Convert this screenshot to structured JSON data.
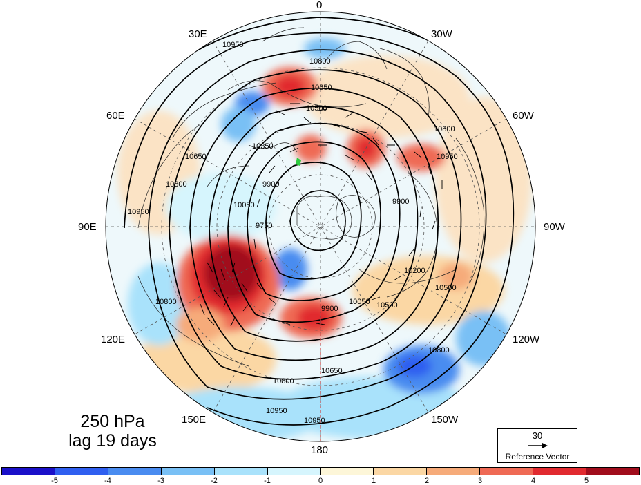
{
  "panel": {
    "level": "250 hPa",
    "lag": "lag 19 days"
  },
  "lon_labels": {
    "top": "0",
    "bottom": "180",
    "e30": "30E",
    "w30": "30W",
    "e60": "60E",
    "w60": "60W",
    "e90": "90E",
    "w90": "90W",
    "e120": "120E",
    "w120": "120W",
    "e150": "150E",
    "w150": "150W"
  },
  "contour_labels": [
    "10950",
    "10800",
    "10650",
    "10500",
    "10350",
    "10200",
    "10050",
    "9900",
    "9750"
  ],
  "reference_vector": {
    "magnitude": "30",
    "label": "Reference Vector"
  },
  "colorbar": {
    "colors": [
      "#1a10c9",
      "#2f5ff0",
      "#4a8cf0",
      "#79c0f5",
      "#a9e2fb",
      "#d6f5fd",
      "#fdf6d8",
      "#fbd7a4",
      "#f6ab7a",
      "#ef6a55",
      "#e12a2f",
      "#a10d1c"
    ],
    "ticks": [
      "-5",
      "-4",
      "-3",
      "-2",
      "-1",
      "0",
      "1",
      "2",
      "3",
      "4",
      "5"
    ]
  },
  "colors": {
    "marker": "#2ecc40",
    "meridian_dash": "#cc4444"
  }
}
